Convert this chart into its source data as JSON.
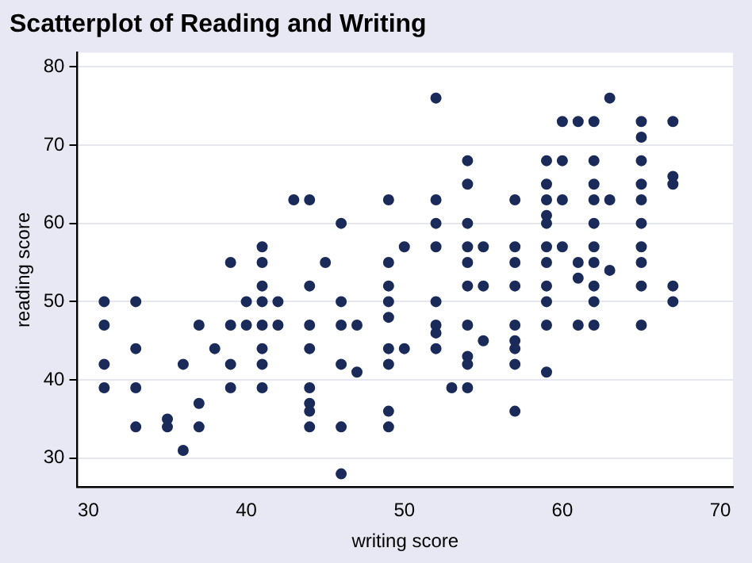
{
  "chart_data": {
    "type": "scatter",
    "title": "Scatterplot of Reading and Writing",
    "xlabel": "writing score",
    "ylabel": "reading score",
    "xlim": [
      29.3,
      70.8
    ],
    "ylim": [
      26.3,
      81.8
    ],
    "xticks": [
      30,
      40,
      50,
      60,
      70
    ],
    "yticks": [
      30,
      40,
      50,
      60,
      70,
      80
    ],
    "grid": "y",
    "marker": "circle",
    "series": [
      {
        "color": "#1a2b5a",
        "x": [
          31,
          31,
          31,
          31,
          33,
          33,
          33,
          33,
          35,
          35,
          36,
          36,
          37,
          37,
          37,
          38,
          39,
          39,
          39,
          39,
          40,
          40,
          41,
          41,
          41,
          41,
          41,
          41,
          41,
          41,
          42,
          42,
          43,
          44,
          44,
          44,
          44,
          44,
          44,
          44,
          44,
          45,
          46,
          46,
          46,
          46,
          46,
          46,
          47,
          47,
          49,
          49,
          49,
          49,
          49,
          49,
          49,
          49,
          49,
          50,
          50,
          52,
          52,
          52,
          52,
          52,
          52,
          52,
          52,
          53,
          54,
          54,
          54,
          54,
          54,
          54,
          54,
          54,
          54,
          54,
          55,
          55,
          55,
          57,
          57,
          57,
          57,
          57,
          57,
          57,
          57,
          57,
          59,
          59,
          59,
          59,
          59,
          59,
          59,
          59,
          59,
          59,
          59,
          60,
          60,
          60,
          60,
          61,
          61,
          61,
          61,
          62,
          62,
          62,
          62,
          62,
          62,
          62,
          62,
          62,
          62,
          63,
          63,
          63,
          65,
          65,
          65,
          65,
          65,
          65,
          65,
          65,
          65,
          65,
          67,
          67,
          67,
          67,
          67
        ],
        "values": [
          50,
          47,
          42,
          39,
          50,
          44,
          39,
          34,
          35,
          34,
          42,
          31,
          47,
          37,
          34,
          44,
          55,
          47,
          42,
          39,
          50,
          47,
          57,
          55,
          52,
          50,
          47,
          44,
          42,
          39,
          50,
          47,
          63,
          63,
          52,
          47,
          44,
          39,
          37,
          36,
          34,
          55,
          60,
          50,
          47,
          42,
          34,
          28,
          47,
          41,
          63,
          55,
          52,
          50,
          48,
          44,
          42,
          36,
          34,
          57,
          44,
          76,
          63,
          60,
          57,
          50,
          47,
          46,
          44,
          39,
          68,
          65,
          60,
          57,
          55,
          52,
          47,
          43,
          42,
          39,
          57,
          52,
          45,
          63,
          57,
          55,
          52,
          47,
          45,
          44,
          42,
          36,
          68,
          65,
          63,
          61,
          60,
          57,
          55,
          52,
          50,
          47,
          41,
          73,
          68,
          63,
          57,
          73,
          55,
          53,
          47,
          73,
          68,
          65,
          63,
          60,
          57,
          55,
          52,
          50,
          47,
          76,
          63,
          54,
          73,
          71,
          68,
          65,
          63,
          60,
          57,
          55,
          52,
          47,
          73,
          66,
          65,
          52,
          50
        ]
      }
    ]
  }
}
